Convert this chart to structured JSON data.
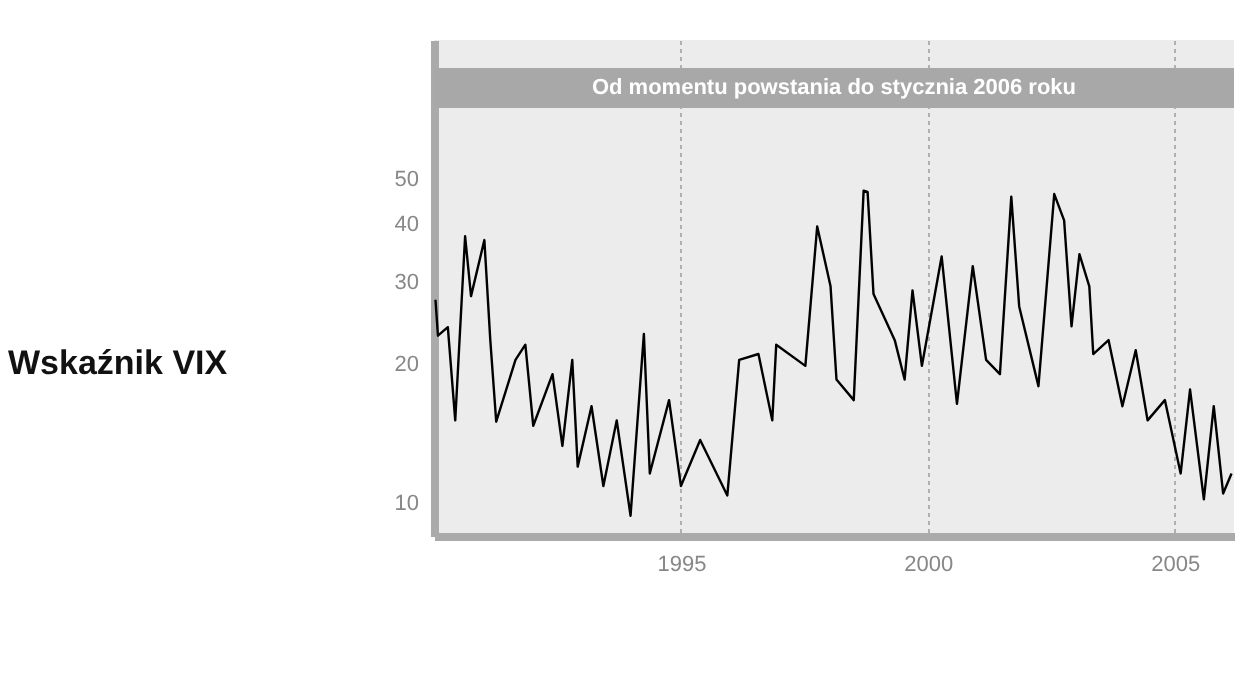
{
  "chart_data": {
    "type": "line",
    "title": "Wskaźnik VIX",
    "bands": [
      {
        "axis": "x",
        "from": 1990,
        "to": 2006.2,
        "label": "Od momentu powstania do stycznia 2006 roku",
        "color": "#a8a8a8"
      }
    ],
    "x": [
      1990.03,
      1990.08,
      1990.28,
      1990.43,
      1990.63,
      1990.75,
      1991.02,
      1991.14,
      1991.26,
      1991.65,
      1991.85,
      1992.01,
      1992.4,
      1992.6,
      1992.8,
      1992.91,
      1993.19,
      1993.43,
      1993.7,
      1993.98,
      1994.25,
      1994.37,
      1994.76,
      1995.0,
      1995.39,
      1995.94,
      1996.18,
      1996.57,
      1996.85,
      1996.93,
      1997.52,
      1997.76,
      1998.03,
      1998.15,
      1998.5,
      1998.62,
      1998.7,
      1998.78,
      1998.9,
      1999.33,
      1999.53,
      1999.69,
      1999.88,
      2000.28,
      2000.59,
      2000.91,
      2001.18,
      2001.46,
      2001.69,
      2001.85,
      2002.24,
      2002.56,
      2002.76,
      2002.91,
      2003.07,
      2003.27,
      2003.35,
      2003.66,
      2003.94,
      2004.21,
      2004.45,
      2004.8,
      2005.12,
      2005.31,
      2005.59,
      2005.79,
      2005.98,
      2006.15
    ],
    "series": [
      {
        "color": "#000000",
        "values": [
          27.5,
          23,
          24,
          15.1,
          37.7,
          28,
          37,
          22.5,
          15,
          20.4,
          22,
          14.7,
          19,
          13.3,
          20.4,
          12,
          16.2,
          10.9,
          15.1,
          9.4,
          23.2,
          11.6,
          16.7,
          10.9,
          13.7,
          10.4,
          20.4,
          21,
          15.1,
          22,
          19.8,
          39.6,
          29.4,
          18.5,
          16.7,
          31.2,
          47.3,
          47,
          28.3,
          22.5,
          18.5,
          28.8,
          19.8,
          34.1,
          16.4,
          32.5,
          20.4,
          19,
          45.9,
          26.6,
          17.9,
          46.5,
          40.8,
          24.1,
          34.5,
          29.4,
          21,
          22.5,
          16.2,
          21.4,
          15.1,
          16.7,
          11.6,
          17.6,
          10.2,
          16.2,
          10.5,
          11.6
        ]
      }
    ],
    "xlim": [
      1990,
      2006.2
    ],
    "xticks": [
      1995,
      2000,
      2005
    ],
    "ylim": [
      8.5,
      100
    ],
    "yticks": [
      10,
      20,
      30,
      40,
      50
    ],
    "log": "y",
    "grid": "x"
  }
}
